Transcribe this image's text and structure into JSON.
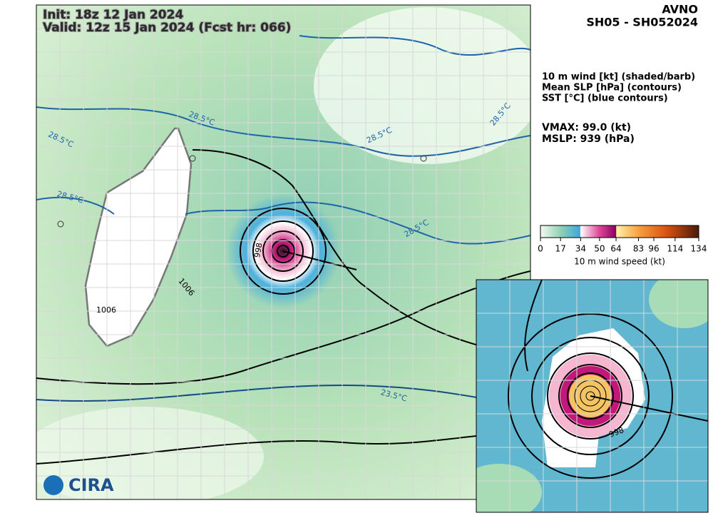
{
  "header": {
    "init": "Init:   18z 12 Jan 2024",
    "valid": "Valid: 12z 15 Jan 2024 (Fcst hr: 066)",
    "model": "AVNO",
    "storm": "SH05 - SH052024"
  },
  "legend": {
    "lines": [
      "10 m wind [kt] (shaded/barb)",
      "Mean SLP [hPa] (contours)",
      "SST [°C] (blue contours)"
    ],
    "vmax": "VMAX:  99.0 (kt)",
    "mslp": "MSLP:  939 (hPa)"
  },
  "colorbar": {
    "range": [
      0,
      134
    ],
    "ticks": [
      0,
      17,
      34,
      50,
      64,
      83,
      96,
      114,
      134
    ],
    "label": "10 m wind speed (kt)"
  },
  "contour_labels": {
    "sst_a": "28.5°C",
    "sst_b": "28.5°C",
    "sst_c": "28.5°C",
    "sst_d": "28.5°C",
    "sst_e": "28.5°C",
    "sst_f": "28.5°C",
    "sst_g": "23.5°C",
    "slp_a": "1006",
    "slp_b": "1006",
    "slp_c": "998",
    "slp_d": "998"
  },
  "logo": "CIRA"
}
